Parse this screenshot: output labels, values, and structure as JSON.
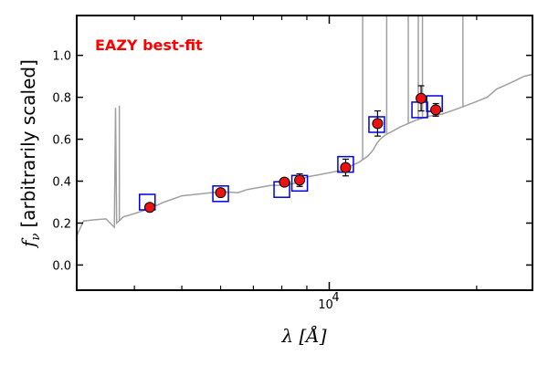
{
  "chart_data": {
    "type": "scatter",
    "annotation": "EAZY best-fit",
    "annotation_color": "#ff0000",
    "xlabel": "λ [Å]",
    "ylabel_symbol": "f",
    "ylabel_subscript": "ν",
    "ylabel_text": "[arbitrarily scaled]",
    "x_scale": "log",
    "xlim": [
      3050,
      26000
    ],
    "ylim": [
      -0.12,
      1.19
    ],
    "x_major_tick": 10000,
    "x_major_tick_label": "10",
    "x_major_tick_label_exp": "4",
    "x_minor_ticks": [
      4000,
      5000,
      6000,
      7000,
      8000,
      9000,
      20000
    ],
    "y_ticks": [
      0.0,
      0.2,
      0.4,
      0.6,
      0.8,
      1.0
    ],
    "y_tick_labels": [
      "0.0",
      "0.2",
      "0.4",
      "0.6",
      "0.8",
      "1.0"
    ],
    "colors": {
      "template": "#a0a0a0",
      "model_box": "#0000dd",
      "observed_fill": "#ee1111",
      "observed_edge": "#000000"
    },
    "template_spectrum": [
      [
        3050,
        0.14
      ],
      [
        3150,
        0.21
      ],
      [
        3300,
        0.215
      ],
      [
        3500,
        0.22
      ],
      [
        3640,
        0.18
      ],
      [
        3660,
        0.75
      ],
      [
        3680,
        0.2
      ],
      [
        3800,
        0.23
      ],
      [
        4000,
        0.245
      ],
      [
        4300,
        0.27
      ],
      [
        4600,
        0.3
      ],
      [
        5000,
        0.33
      ],
      [
        5500,
        0.34
      ],
      [
        6000,
        0.35
      ],
      [
        6500,
        0.345
      ],
      [
        6800,
        0.36
      ],
      [
        7200,
        0.37
      ],
      [
        7600,
        0.38
      ],
      [
        8000,
        0.38
      ],
      [
        8500,
        0.39
      ],
      [
        9000,
        0.42
      ],
      [
        9500,
        0.43
      ],
      [
        10000,
        0.44
      ],
      [
        10500,
        0.45
      ],
      [
        11000,
        0.47
      ],
      [
        11500,
        0.49
      ],
      [
        12000,
        0.52
      ],
      [
        12300,
        0.55
      ],
      [
        12500,
        0.58
      ],
      [
        12700,
        0.6
      ],
      [
        13000,
        0.62
      ],
      [
        13500,
        0.64
      ],
      [
        14000,
        0.66
      ],
      [
        15000,
        0.69
      ],
      [
        16000,
        0.71
      ],
      [
        17000,
        0.72
      ],
      [
        18000,
        0.74
      ],
      [
        19000,
        0.76
      ],
      [
        20000,
        0.78
      ],
      [
        21000,
        0.8
      ],
      [
        22000,
        0.84
      ],
      [
        23000,
        0.86
      ],
      [
        24000,
        0.88
      ],
      [
        25000,
        0.9
      ],
      [
        26000,
        0.91
      ]
    ],
    "emission_lines": [
      [
        3727,
        0.76
      ],
      [
        11700,
        1.19
      ],
      [
        13100,
        1.19
      ],
      [
        14500,
        1.19
      ],
      [
        15200,
        1.19
      ],
      [
        15500,
        1.19
      ],
      [
        18750,
        1.19
      ]
    ],
    "model_photometry": [
      {
        "x": 4250,
        "y": 0.3
      },
      {
        "x": 6000,
        "y": 0.34
      },
      {
        "x": 8000,
        "y": 0.36
      },
      {
        "x": 8700,
        "y": 0.39
      },
      {
        "x": 10800,
        "y": 0.48
      },
      {
        "x": 12500,
        "y": 0.67
      },
      {
        "x": 15300,
        "y": 0.74
      },
      {
        "x": 16400,
        "y": 0.77
      }
    ],
    "observed_photometry": [
      {
        "x": 4300,
        "y": 0.275,
        "err": 0.01
      },
      {
        "x": 6000,
        "y": 0.345,
        "err": 0.01
      },
      {
        "x": 8100,
        "y": 0.395,
        "err": 0.015
      },
      {
        "x": 8700,
        "y": 0.405,
        "err": 0.03
      },
      {
        "x": 10800,
        "y": 0.465,
        "err": 0.04
      },
      {
        "x": 12550,
        "y": 0.675,
        "err": 0.06
      },
      {
        "x": 15400,
        "y": 0.795,
        "err": 0.06
      },
      {
        "x": 16500,
        "y": 0.74,
        "err": 0.03
      }
    ]
  }
}
